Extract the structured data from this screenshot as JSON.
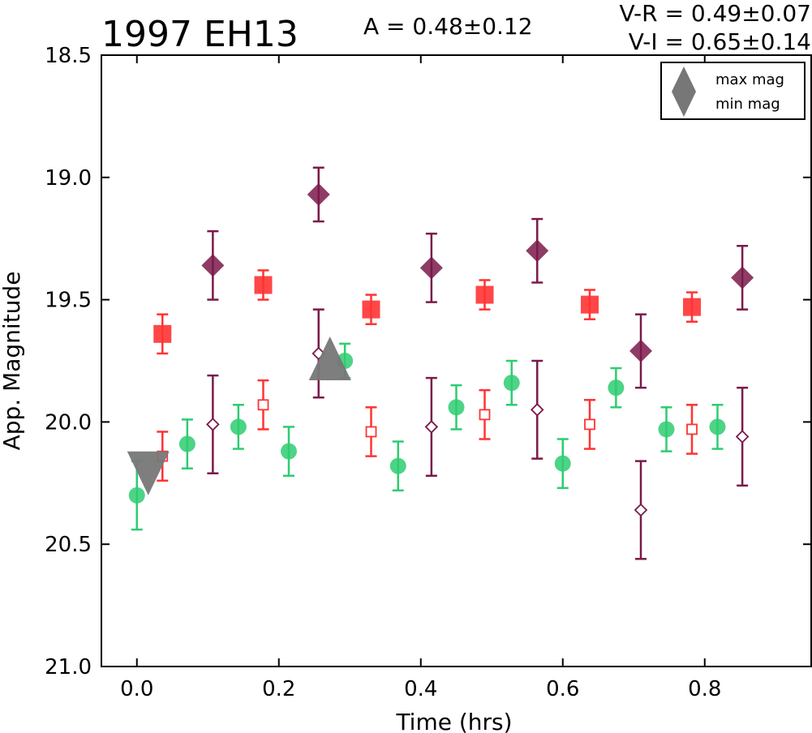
{
  "chart_data": {
    "type": "scatter",
    "title": "1997 EH13",
    "annotations": {
      "amplitude": "A  = 0.48±0.12",
      "v_r": "V-R = 0.49±0.07",
      "v_i": "V-I  = 0.65±0.14"
    },
    "xlabel": "Time (hrs)",
    "ylabel": "App. Magnitude",
    "xlim": [
      -0.05,
      0.95
    ],
    "ylim": [
      21.0,
      18.5
    ],
    "y_inverted": true,
    "xticks": [
      "0.0",
      "0.2",
      "0.4",
      "0.6",
      "0.8"
    ],
    "yticks": [
      "18.5",
      "19.0",
      "19.5",
      "20.0",
      "20.5",
      "21.0"
    ],
    "grid": false,
    "legend": {
      "placement": "top-right",
      "entries": [
        {
          "label": "max mag",
          "marker": "triangle-up"
        },
        {
          "label": "min mag",
          "marker": "triangle-down"
        }
      ]
    },
    "series": [
      {
        "band": "V",
        "marker": "circle",
        "color": "#2ecc71",
        "points": [
          {
            "x": 0.0,
            "y": 20.3,
            "err": 0.14
          },
          {
            "x": 0.071,
            "y": 20.09,
            "err": 0.1
          },
          {
            "x": 0.143,
            "y": 20.02,
            "err": 0.09
          },
          {
            "x": 0.214,
            "y": 20.12,
            "err": 0.1
          },
          {
            "x": 0.293,
            "y": 19.75,
            "err": 0.07
          },
          {
            "x": 0.368,
            "y": 20.18,
            "err": 0.1
          },
          {
            "x": 0.45,
            "y": 19.94,
            "err": 0.09
          },
          {
            "x": 0.528,
            "y": 19.84,
            "err": 0.09
          },
          {
            "x": 0.6,
            "y": 20.17,
            "err": 0.1
          },
          {
            "x": 0.675,
            "y": 19.86,
            "err": 0.08
          },
          {
            "x": 0.746,
            "y": 20.03,
            "err": 0.09
          },
          {
            "x": 0.818,
            "y": 20.02,
            "err": 0.09
          }
        ]
      },
      {
        "band": "R",
        "marker": "square",
        "color": "#ff3333",
        "points": [
          {
            "x": 0.036,
            "y": 19.64,
            "err": 0.08,
            "filled": true
          },
          {
            "x": 0.178,
            "y": 19.44,
            "err": 0.06,
            "filled": true
          },
          {
            "x": 0.33,
            "y": 19.54,
            "err": 0.06,
            "filled": true
          },
          {
            "x": 0.49,
            "y": 19.48,
            "err": 0.06,
            "filled": true
          },
          {
            "x": 0.638,
            "y": 19.52,
            "err": 0.06,
            "filled": true
          },
          {
            "x": 0.782,
            "y": 19.53,
            "err": 0.06,
            "filled": true
          },
          {
            "x": 0.036,
            "y": 20.14,
            "err": 0.1,
            "filled": false
          },
          {
            "x": 0.178,
            "y": 19.93,
            "err": 0.1,
            "filled": false
          },
          {
            "x": 0.33,
            "y": 20.04,
            "err": 0.1,
            "filled": false
          },
          {
            "x": 0.49,
            "y": 19.97,
            "err": 0.1,
            "filled": false
          },
          {
            "x": 0.638,
            "y": 20.01,
            "err": 0.1,
            "filled": false
          },
          {
            "x": 0.782,
            "y": 20.03,
            "err": 0.1,
            "filled": false
          }
        ]
      },
      {
        "band": "I",
        "marker": "diamond",
        "color": "#7a1a4a",
        "points": [
          {
            "x": 0.107,
            "y": 19.36,
            "err": 0.14,
            "filled": true
          },
          {
            "x": 0.256,
            "y": 19.07,
            "err": 0.11,
            "filled": true
          },
          {
            "x": 0.415,
            "y": 19.37,
            "err": 0.14,
            "filled": true
          },
          {
            "x": 0.564,
            "y": 19.3,
            "err": 0.13,
            "filled": true
          },
          {
            "x": 0.71,
            "y": 19.71,
            "err": 0.15,
            "filled": true
          },
          {
            "x": 0.853,
            "y": 19.41,
            "err": 0.13,
            "filled": true
          },
          {
            "x": 0.107,
            "y": 20.01,
            "err": 0.2,
            "filled": false
          },
          {
            "x": 0.256,
            "y": 19.72,
            "err": 0.18,
            "filled": false
          },
          {
            "x": 0.415,
            "y": 20.02,
            "err": 0.2,
            "filled": false
          },
          {
            "x": 0.564,
            "y": 19.95,
            "err": 0.2,
            "filled": false
          },
          {
            "x": 0.71,
            "y": 20.36,
            "err": 0.2,
            "filled": false
          },
          {
            "x": 0.853,
            "y": 20.06,
            "err": 0.2,
            "filled": false
          }
        ]
      }
    ],
    "markers": [
      {
        "type": "max",
        "x": 0.272,
        "y": 19.74,
        "marker": "triangle-up",
        "color": "#777777"
      },
      {
        "type": "min",
        "x": 0.016,
        "y": 20.21,
        "marker": "triangle-down",
        "color": "#777777"
      }
    ]
  }
}
